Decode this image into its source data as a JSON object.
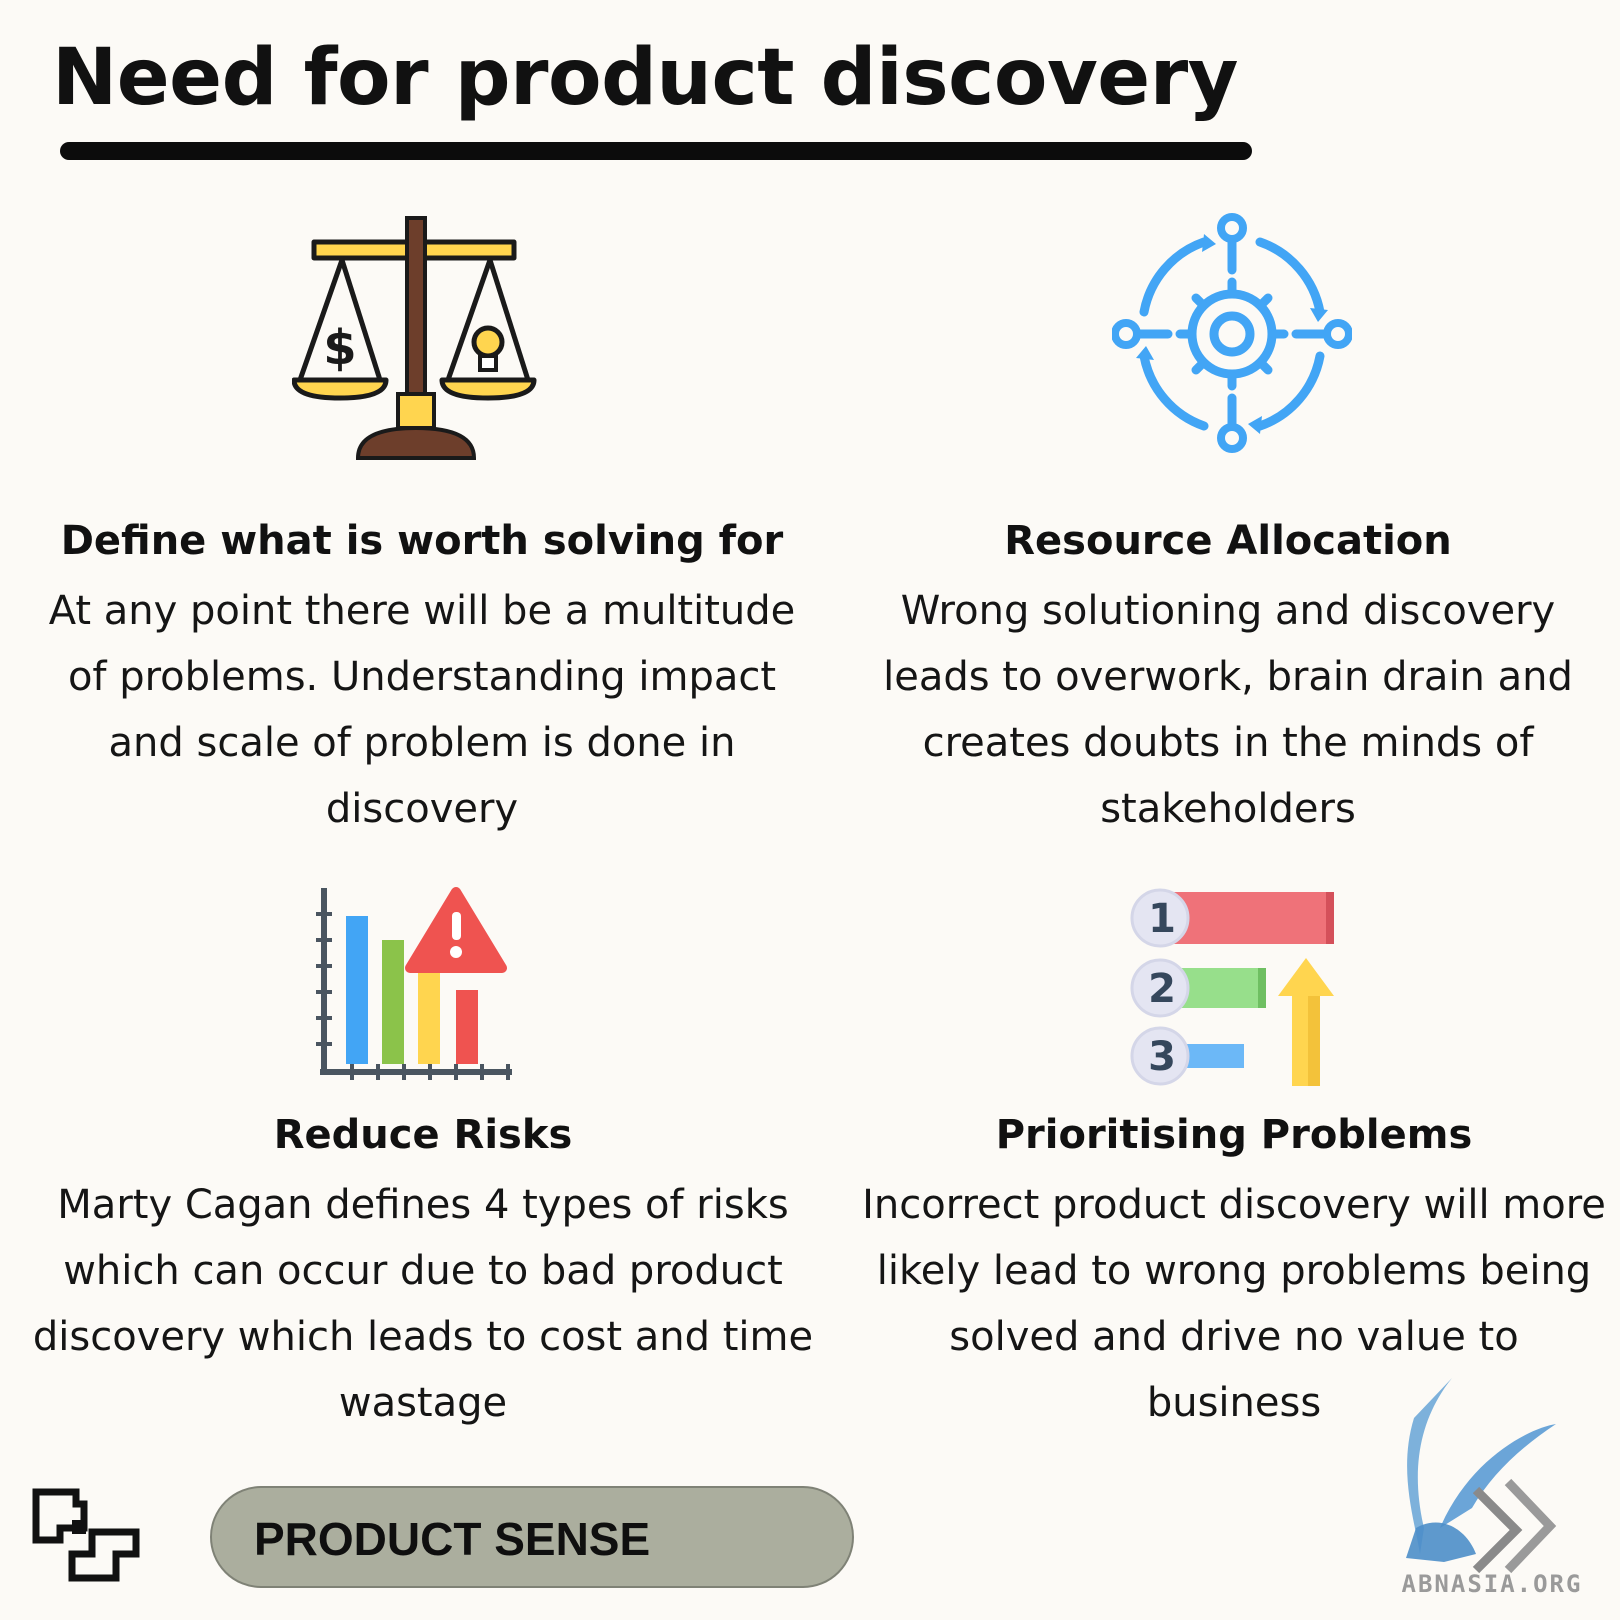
{
  "header": {
    "title": "Need for product discovery"
  },
  "sections": [
    {
      "heading": "Define what is worth solving for",
      "body": "At any point there will be a multitude of problems. Understanding impact and scale of problem is done in discovery",
      "icon": "balance-scale-icon"
    },
    {
      "heading": "Resource Allocation",
      "body": "Wrong solutioning and discovery leads to overwork, brain drain and creates doubts in the minds of stakeholders",
      "icon": "gear-cycle-icon"
    },
    {
      "heading": "Reduce Risks",
      "body": "Marty Cagan defines 4 types of risks which can occur due to bad product discovery which leads to cost and time wastage",
      "icon": "risk-chart-icon"
    },
    {
      "heading": "Prioritising Problems",
      "body": "Incorrect product discovery will more likely lead to wrong problems being solved and drive no value to business",
      "icon": "priority-list-icon",
      "priority_numbers": [
        "1",
        "2",
        "3"
      ]
    }
  ],
  "footer": {
    "tag": "PRODUCT SENSE",
    "logo_icon": "pixel-logo-icon"
  },
  "watermark": {
    "text": "ABNASIA.ORG",
    "icon": "griffin-watermark-icon"
  },
  "colors": {
    "background": "#fcfaf6",
    "text": "#111111",
    "tag_fill": "#abae9e",
    "icon_blue": "#42a5f5",
    "icon_yellow": "#ffd54f",
    "icon_red": "#ef5350",
    "icon_green": "#8bc34a",
    "icon_brown": "#6d3e2b"
  }
}
